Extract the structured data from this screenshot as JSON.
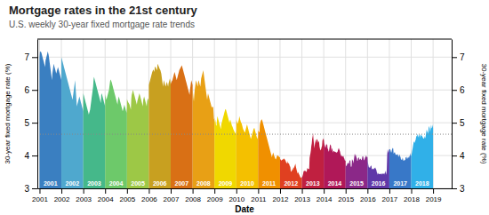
{
  "chart_data": {
    "type": "area",
    "title": "Mortgage rates in the 21st century",
    "subtitle": "U.S. weekly 30-year fixed mortgage rate trends",
    "xlabel": "Date",
    "ylabel": "30-year fixed mortgage rate (%)",
    "y2label": "30-year fixed mortgage rate (%)",
    "xlim": [
      2000.9,
      2019.85
    ],
    "xticks": [
      2001,
      2002,
      2003,
      2004,
      2005,
      2006,
      2007,
      2008,
      2009,
      2010,
      2011,
      2012,
      2013,
      2014,
      2015,
      2016,
      2017,
      2018,
      2019
    ],
    "ylim": [
      3.0,
      7.55
    ],
    "yticks": [
      3,
      4,
      5,
      6,
      7
    ],
    "y2lim": [
      3.0,
      7.55
    ],
    "y2ticks": [
      3,
      4,
      5,
      6,
      7
    ],
    "reference_line": 4.65,
    "grid": true,
    "series": [
      {
        "name": "2001",
        "color": "#3A7FC1",
        "values": [
          7.0,
          7.18,
          7.17,
          7.16,
          7.15,
          7.1,
          7.05,
          7.0,
          6.95,
          6.9,
          6.85,
          6.8,
          6.75,
          6.7,
          6.9,
          6.95,
          7.0,
          7.05,
          7.1,
          7.18,
          7.13,
          7.08,
          7.0,
          6.9,
          6.8,
          6.7,
          6.6,
          6.5,
          6.4,
          6.3,
          6.5,
          6.6,
          6.7,
          6.8,
          6.75,
          6.7,
          6.65,
          6.6,
          6.55,
          6.5,
          6.55,
          6.6,
          6.65,
          6.7,
          6.65,
          6.6,
          6.55,
          6.5,
          6.45,
          6.4,
          6.35,
          6.3
        ]
      },
      {
        "name": "2002",
        "color": "#4FA8CE",
        "values": [
          7.0,
          6.95,
          6.9,
          6.85,
          6.8,
          6.75,
          6.7,
          6.65,
          6.6,
          6.55,
          6.5,
          6.45,
          6.4,
          6.35,
          6.3,
          6.25,
          6.2,
          6.15,
          6.1,
          6.05,
          6.0,
          5.95,
          5.9,
          5.85,
          5.8,
          5.75,
          5.7,
          5.8,
          5.9,
          6.0,
          6.1,
          6.2,
          6.3,
          6.1,
          5.9,
          5.7,
          5.5,
          5.55,
          5.6,
          5.65,
          5.7,
          5.75,
          5.8,
          5.75,
          5.7,
          5.65,
          5.6,
          5.55,
          5.5,
          5.45,
          5.4,
          5.35
        ]
      },
      {
        "name": "2003",
        "color": "#45B88A",
        "values": [
          5.9,
          5.85,
          5.8,
          5.75,
          5.7,
          5.65,
          5.6,
          5.55,
          5.5,
          5.45,
          5.4,
          5.35,
          5.3,
          5.25,
          5.3,
          5.35,
          5.4,
          5.5,
          5.6,
          5.7,
          5.8,
          5.9,
          6.0,
          6.1,
          6.3,
          6.4,
          6.35,
          6.3,
          6.25,
          6.2,
          6.15,
          6.1,
          6.05,
          6.0,
          5.95,
          5.9,
          5.85,
          5.8,
          5.75,
          5.7,
          5.65,
          5.6,
          5.85,
          5.9,
          5.85,
          5.8,
          5.75,
          5.7,
          5.65,
          5.6,
          5.55,
          5.5
        ]
      },
      {
        "name": "2004",
        "color": "#6DC96A",
        "values": [
          5.87,
          5.8,
          5.75,
          5.7,
          5.75,
          5.8,
          5.85,
          5.9,
          5.95,
          6.0,
          6.1,
          6.2,
          6.3,
          6.32,
          6.28,
          6.25,
          6.2,
          6.15,
          6.1,
          6.05,
          6.0,
          5.95,
          5.9,
          5.85,
          5.8,
          5.75,
          5.7,
          5.65,
          5.6,
          5.55,
          5.7,
          5.75,
          5.8,
          5.75,
          5.7,
          5.65,
          5.6,
          5.55,
          5.5,
          5.45,
          5.4,
          5.35,
          5.4,
          5.45,
          5.5,
          5.55,
          5.5,
          5.45,
          5.4,
          5.35,
          5.3,
          5.5
        ]
      },
      {
        "name": "2005",
        "color": "#9DC846",
        "values": [
          5.72,
          5.68,
          5.65,
          5.62,
          5.6,
          5.58,
          5.55,
          5.5,
          5.45,
          5.4,
          5.72,
          5.85,
          5.9,
          5.95,
          6.0,
          5.95,
          5.9,
          5.85,
          5.8,
          5.75,
          5.7,
          5.65,
          5.6,
          5.55,
          5.65,
          5.7,
          5.75,
          5.8,
          5.85,
          5.9,
          5.85,
          5.8,
          5.75,
          5.7,
          5.65,
          5.6,
          5.55,
          5.5,
          5.7,
          5.75,
          5.8,
          5.75,
          5.7,
          5.65,
          5.6,
          5.55,
          5.5,
          5.65,
          5.7,
          5.75,
          5.7,
          5.65
        ]
      },
      {
        "name": "2006",
        "color": "#C8A020",
        "values": [
          6.15,
          6.2,
          6.25,
          6.3,
          6.35,
          6.4,
          6.45,
          6.5,
          6.55,
          6.58,
          6.6,
          6.62,
          6.58,
          6.55,
          6.72,
          6.7,
          6.68,
          6.65,
          6.62,
          6.6,
          6.75,
          6.8,
          6.75,
          6.72,
          6.68,
          6.65,
          6.62,
          6.6,
          6.55,
          6.5,
          6.4,
          6.3,
          6.2,
          6.1,
          6.2,
          6.3,
          6.25,
          6.2,
          6.15,
          6.1,
          6.15,
          6.2,
          6.25,
          6.2,
          6.15,
          6.1,
          6.2,
          6.25,
          6.3,
          6.35,
          6.3,
          6.14
        ]
      },
      {
        "name": "2007",
        "color": "#D97015",
        "values": [
          6.18,
          6.22,
          6.25,
          6.28,
          6.3,
          6.35,
          6.4,
          6.45,
          6.5,
          6.55,
          6.5,
          6.45,
          6.4,
          6.35,
          6.3,
          6.35,
          6.4,
          6.45,
          6.5,
          6.55,
          6.6,
          6.63,
          6.65,
          6.68,
          6.7,
          6.73,
          6.75,
          6.7,
          6.65,
          6.6,
          6.55,
          6.5,
          6.45,
          6.4,
          6.35,
          6.3,
          6.25,
          6.2,
          6.15,
          6.1,
          6.05,
          6.0,
          5.95,
          5.9,
          5.85,
          6.0,
          6.1,
          6.2,
          6.3,
          6.25,
          6.2,
          6.15
        ]
      },
      {
        "name": "2008",
        "color": "#E8A015",
        "values": [
          6.07,
          5.9,
          5.76,
          5.65,
          5.85,
          6.0,
          6.1,
          6.2,
          6.3,
          6.25,
          6.2,
          6.15,
          6.1,
          6.25,
          6.3,
          6.25,
          6.2,
          6.15,
          6.1,
          6.2,
          6.35,
          6.4,
          6.45,
          6.5,
          6.55,
          6.6,
          6.5,
          6.4,
          6.3,
          6.2,
          6.1,
          6.0,
          5.9,
          5.8,
          5.7,
          5.8,
          5.9,
          5.85,
          5.8,
          5.75,
          5.7,
          5.65,
          5.6,
          5.55,
          5.5,
          5.45,
          5.5,
          5.47,
          5.5,
          5.3,
          5.1,
          5.14
        ]
      },
      {
        "name": "2009",
        "color": "#F0D800",
        "values": [
          5.01,
          5.05,
          5.1,
          5.0,
          4.9,
          4.93,
          5.1,
          5.2,
          5.15,
          5.1,
          5.05,
          5.0,
          4.95,
          4.9,
          4.85,
          4.8,
          4.95,
          5.0,
          5.05,
          5.1,
          5.15,
          5.2,
          5.25,
          5.3,
          5.35,
          5.4,
          5.42,
          5.4,
          5.35,
          5.3,
          5.25,
          5.2,
          5.15,
          5.1,
          5.05,
          5.0,
          5.05,
          5.1,
          5.05,
          5.0,
          4.95,
          4.9,
          4.88,
          4.85,
          4.8,
          4.78,
          4.75,
          4.72,
          4.7,
          4.68,
          4.65,
          4.81
        ]
      },
      {
        "name": "2010",
        "color": "#F4C000",
        "values": [
          5.09,
          5.05,
          5.0,
          4.97,
          5.0,
          5.05,
          5.1,
          5.2,
          5.15,
          5.1,
          5.05,
          5.0,
          5.0,
          4.95,
          4.9,
          4.85,
          4.8,
          4.78,
          4.75,
          4.72,
          4.7,
          4.75,
          4.8,
          4.85,
          4.9,
          4.95,
          4.9,
          4.85,
          4.8,
          4.75,
          4.7,
          4.65,
          4.6,
          4.55,
          4.5,
          4.55,
          4.6,
          4.65,
          4.7,
          4.75,
          4.8,
          4.82,
          4.85,
          4.8,
          4.75,
          4.7,
          4.65,
          4.6,
          4.55,
          4.5,
          4.55,
          4.61
        ]
      },
      {
        "name": "2011",
        "color": "#F09000",
        "values": [
          4.77,
          4.75,
          4.72,
          4.7,
          4.95,
          5.0,
          5.05,
          5.08,
          5.1,
          5.1,
          5.05,
          5.0,
          4.95,
          4.9,
          4.85,
          4.8,
          4.75,
          4.7,
          4.65,
          4.6,
          4.55,
          4.5,
          4.45,
          4.4,
          4.35,
          4.3,
          4.25,
          4.2,
          4.15,
          4.1,
          4.05,
          4.0,
          3.95,
          4.0,
          4.05,
          4.1,
          4.05,
          4.0,
          3.97,
          3.94,
          3.9,
          3.88,
          3.91,
          3.95,
          3.99,
          4.0,
          4.0,
          3.99,
          3.97,
          3.96,
          3.95,
          3.95
        ]
      },
      {
        "name": "2012",
        "color": "#E04020",
        "values": [
          3.91,
          3.88,
          3.87,
          3.84,
          3.87,
          3.88,
          3.87,
          3.88,
          3.9,
          3.9,
          3.91,
          3.88,
          3.87,
          3.84,
          3.8,
          3.78,
          3.75,
          3.83,
          3.78,
          3.75,
          3.78,
          3.75,
          3.71,
          3.67,
          3.66,
          3.53,
          3.5,
          3.53,
          3.55,
          3.6,
          3.55,
          3.64,
          3.61,
          3.65,
          3.68,
          3.72,
          3.75,
          3.66,
          3.6,
          3.55,
          3.5,
          3.45,
          3.5,
          3.47,
          3.44,
          3.41,
          3.38,
          3.35,
          3.32,
          3.34,
          3.31,
          3.35
        ]
      },
      {
        "name": "2013",
        "color": "#C02040",
        "values": [
          3.34,
          3.35,
          3.4,
          3.45,
          3.53,
          3.52,
          3.53,
          3.55,
          3.53,
          3.52,
          3.51,
          3.5,
          3.57,
          3.63,
          3.59,
          3.6,
          3.58,
          3.59,
          3.93,
          4.0,
          4.07,
          4.16,
          4.29,
          4.37,
          4.51,
          4.58,
          4.68,
          4.51,
          4.37,
          4.22,
          4.32,
          4.4,
          4.5,
          4.39,
          4.47,
          4.5,
          4.49,
          4.45,
          4.39,
          4.42,
          4.44,
          4.28,
          4.22,
          4.16,
          4.18,
          4.2,
          4.26,
          4.29,
          4.47,
          4.48,
          4.53,
          4.46
        ]
      },
      {
        "name": "2014",
        "color": "#B01858",
        "values": [
          4.53,
          4.39,
          4.33,
          4.28,
          4.23,
          4.28,
          4.37,
          4.32,
          4.34,
          4.21,
          4.2,
          4.14,
          4.12,
          4.2,
          4.27,
          4.34,
          4.33,
          4.29,
          4.14,
          4.2,
          4.23,
          4.14,
          4.09,
          4.14,
          4.14,
          4.12,
          4.12,
          4.1,
          4.12,
          4.09,
          4.08,
          4.12,
          4.1,
          4.16,
          4.2,
          4.23,
          4.19,
          4.16,
          4.12,
          4.04,
          4.02,
          3.97,
          3.98,
          4.0,
          3.97,
          3.97,
          3.99,
          3.93,
          3.91,
          3.86,
          3.83,
          3.86
        ]
      },
      {
        "name": "2015",
        "color": "#8B2888",
        "values": [
          3.73,
          3.67,
          3.69,
          3.71,
          3.76,
          3.75,
          3.79,
          3.76,
          3.75,
          3.86,
          3.84,
          3.86,
          3.67,
          3.65,
          3.68,
          3.91,
          3.84,
          3.87,
          3.76,
          3.84,
          3.94,
          4.04,
          4.04,
          3.98,
          4.02,
          3.94,
          3.93,
          3.84,
          3.84,
          3.91,
          3.94,
          3.94,
          3.89,
          3.87,
          3.9,
          3.91,
          3.86,
          3.87,
          3.89,
          3.97,
          3.98,
          3.97,
          3.9,
          3.86,
          3.86,
          3.93,
          3.95,
          3.97,
          4.01,
          3.97,
          3.94,
          3.96
        ]
      },
      {
        "name": "2016",
        "color": "#6038A8",
        "values": [
          3.97,
          3.79,
          3.72,
          3.65,
          3.62,
          3.65,
          3.62,
          3.68,
          3.68,
          3.71,
          3.59,
          3.58,
          3.59,
          3.61,
          3.58,
          3.58,
          3.62,
          3.61,
          3.64,
          3.6,
          3.58,
          3.54,
          3.48,
          3.46,
          3.41,
          3.48,
          3.43,
          3.44,
          3.43,
          3.44,
          3.44,
          3.45,
          3.43,
          3.42,
          3.46,
          3.44,
          3.45,
          3.46,
          3.44,
          3.42,
          3.47,
          3.47,
          3.54,
          3.47,
          3.41,
          3.57,
          4.03,
          4.19,
          4.13,
          4.08,
          4.16,
          4.2
        ]
      },
      {
        "name": "2017",
        "color": "#3878C8",
        "values": [
          4.2,
          4.19,
          4.19,
          4.15,
          4.1,
          4.1,
          4.17,
          4.21,
          4.23,
          4.21,
          4.05,
          4.08,
          4.1,
          4.1,
          4.05,
          4.02,
          4.02,
          4.03,
          4.02,
          4.05,
          4.02,
          3.96,
          3.97,
          4.02,
          4.03,
          3.97,
          3.96,
          3.89,
          3.88,
          3.87,
          3.88,
          3.94,
          3.89,
          3.83,
          3.85,
          3.85,
          3.86,
          3.87,
          3.95,
          3.94,
          3.97,
          3.9,
          3.9,
          3.95,
          3.92,
          3.97,
          3.93,
          3.99,
          3.99,
          4.08,
          3.99,
          3.99
        ]
      },
      {
        "name": "2018",
        "color": "#30B0E8",
        "values": [
          3.99,
          4.05,
          4.15,
          4.22,
          4.32,
          4.4,
          4.43,
          4.38,
          4.44,
          4.47,
          4.55,
          4.61,
          4.58,
          4.66,
          4.61,
          4.55,
          4.61,
          4.66,
          4.61,
          4.54,
          4.66,
          4.6,
          4.62,
          4.57,
          4.55,
          4.52,
          4.52,
          4.54,
          4.6,
          4.52,
          4.61,
          4.72,
          4.8,
          4.72,
          4.72,
          4.66,
          4.9,
          4.86,
          4.83,
          4.71,
          4.83,
          4.94,
          4.83,
          4.85,
          4.94,
          4.83
        ]
      }
    ]
  }
}
